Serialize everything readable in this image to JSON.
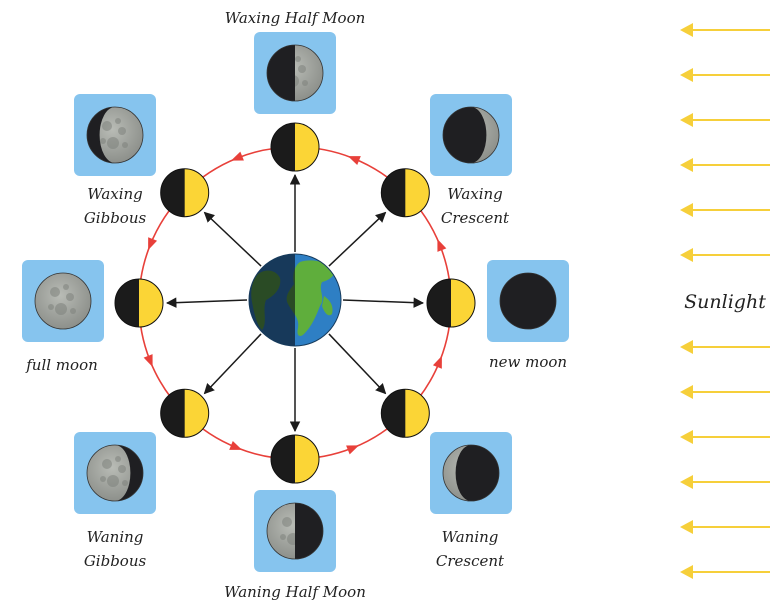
{
  "labels": {
    "waxing_half": "Waxing Half Moon",
    "waxing_gibbous_1": "Waxing",
    "waxing_gibbous_2": "Gibbous",
    "waxing_crescent_1": "Waxing",
    "waxing_crescent_2": "Crescent",
    "full": "full moon",
    "new": "new moon",
    "waning_gibbous_1": "Waning",
    "waning_gibbous_2": "Gibbous",
    "waning_crescent_1": "Waning",
    "waning_crescent_2": "Crescent",
    "waning_half": "Waning Half Moon",
    "sunlight": "Sunlight"
  },
  "colors": {
    "orbit": "#e8403a",
    "lit_side": "#fbd536",
    "dark_side": "#1b1b1b",
    "card": "#86c4ee",
    "sunlight_arrows": "#f6cf3a",
    "earth_ocean": "#2e7fc4",
    "earth_land": "#5fae3c"
  },
  "icons": {
    "earth": "earth-icon",
    "moon": "moon-icon",
    "arrow": "sunlight-arrow-icon"
  }
}
